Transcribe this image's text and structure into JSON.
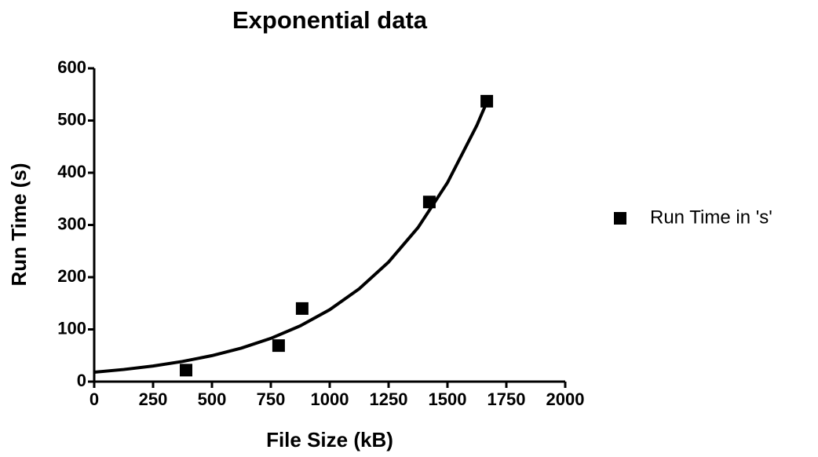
{
  "chart_data": {
    "type": "scatter",
    "title": "Exponential data",
    "x_label": "File Size (kB)",
    "y_label": "Run Time (s)",
    "xlim": [
      0,
      2000
    ],
    "xticks": [
      0,
      250,
      500,
      750,
      1000,
      1250,
      1500,
      1750,
      2000
    ],
    "ylim": [
      0,
      600
    ],
    "yticks": [
      0,
      100,
      200,
      300,
      400,
      500,
      600
    ],
    "series": [
      {
        "name": "Run Time in 's'",
        "type": "scatter",
        "color": "#000000",
        "x": [
          390,
          783,
          883,
          1423,
          1667
        ],
        "values": [
          22,
          69,
          140,
          344,
          537
        ]
      },
      {
        "type": "line",
        "color": "#000000",
        "x": [
          0,
          125,
          250,
          375,
          500,
          625,
          750,
          875,
          1000,
          1125,
          1250,
          1375,
          1500,
          1625,
          1667
        ],
        "values": [
          18,
          23.2,
          29.9,
          38.6,
          49.8,
          64.2,
          82.8,
          106.8,
          137.7,
          177.7,
          229,
          295,
          381,
          491,
          535
        ]
      }
    ],
    "legend": "right"
  }
}
